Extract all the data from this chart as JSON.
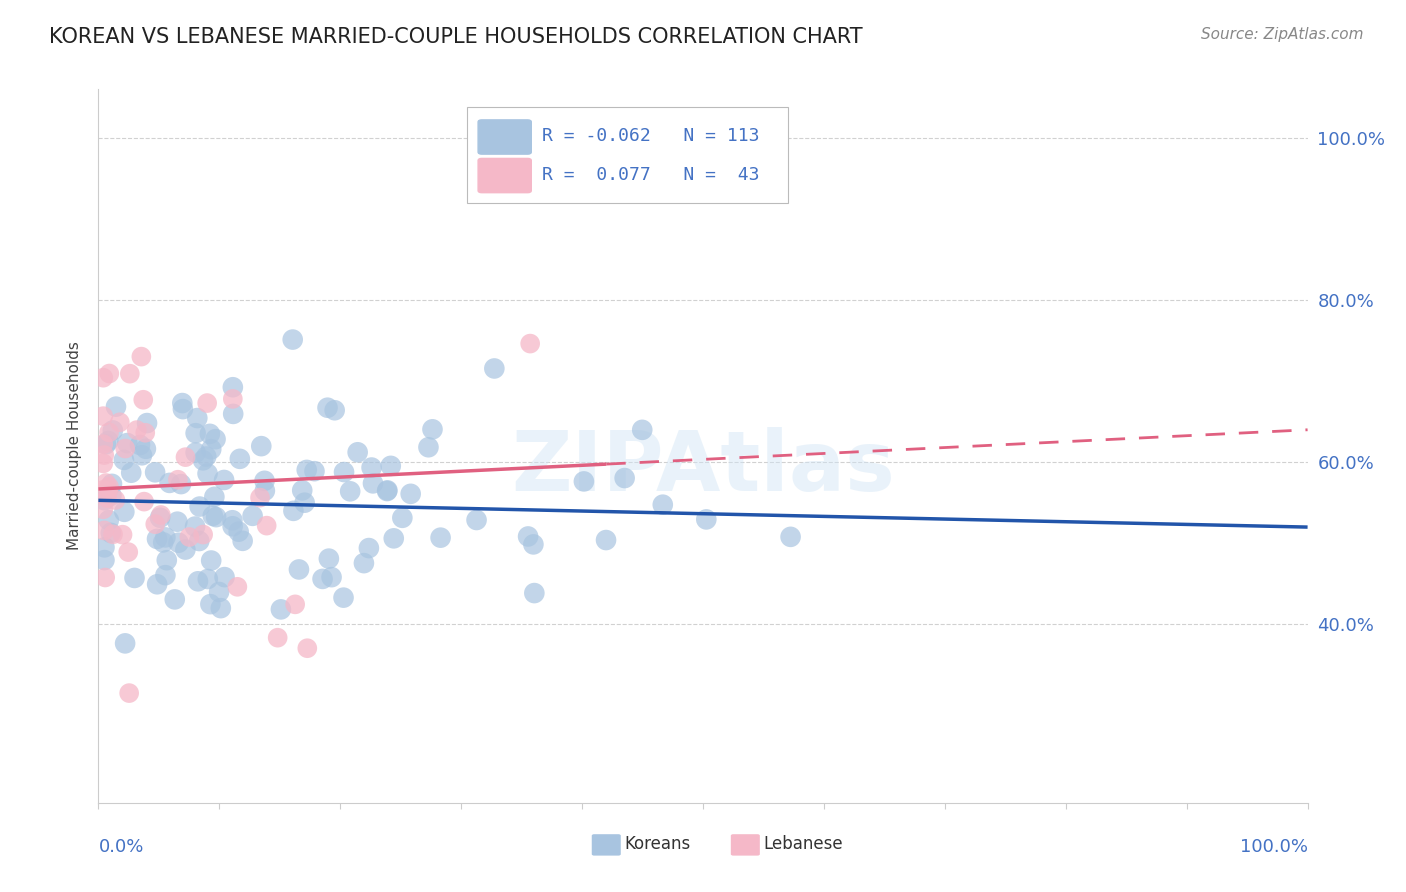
{
  "title": "KOREAN VS LEBANESE MARRIED-COUPLE HOUSEHOLDS CORRELATION CHART",
  "source": "Source: ZipAtlas.com",
  "ylabel": "Married-couple Households",
  "r_korean": -0.062,
  "n_korean": 113,
  "r_lebanese": 0.077,
  "n_lebanese": 43,
  "korean_color": "#a8c4e0",
  "lebanese_color": "#f5b8c8",
  "trend_korean_color": "#2255aa",
  "trend_lebanese_color": "#e06080",
  "ytick_labels": [
    "40.0%",
    "60.0%",
    "80.0%",
    "100.0%"
  ],
  "ytick_values": [
    0.4,
    0.6,
    0.8,
    1.0
  ],
  "watermark": "ZIPAtlas",
  "ylim_min": 0.18,
  "ylim_max": 1.06,
  "xlim_min": 0.0,
  "xlim_max": 1.0,
  "trend_kor_x0": 0.0,
  "trend_kor_y0": 0.553,
  "trend_kor_x1": 1.0,
  "trend_kor_y1": 0.52,
  "trend_leb_x0": 0.0,
  "trend_leb_y0": 0.567,
  "trend_leb_x1": 1.0,
  "trend_leb_y1": 0.64,
  "trend_leb_solid_end": 0.42
}
